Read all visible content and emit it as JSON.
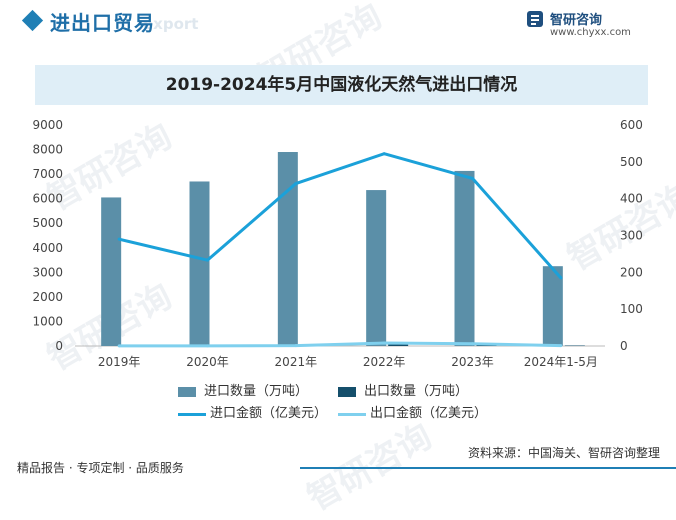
{
  "header": {
    "title": "进出口贸易",
    "subtitle": "export",
    "brand_name": "智研咨询",
    "brand_url": "www.chyxx.com"
  },
  "watermark": "智研咨询",
  "chart_title": "2019-2024年5月中国液化天然气进出口情况",
  "source": "资料来源：中国海关、智研咨询整理",
  "footer": "精品报告 · 专项定制 · 品质服务",
  "colors": {
    "import_qty": "#5b8fa8",
    "export_qty": "#154f6b",
    "import_value": "#1ba1d9",
    "export_value": "#7fd0ee",
    "title_bg": "#dfeef7",
    "accent": "#1f7fb5"
  },
  "chart_data": {
    "type": "bar",
    "title": "2019-2024年5月中国液化天然气进出口情况",
    "categories": [
      "2019年",
      "2020年",
      "2021年",
      "2022年",
      "2023年",
      "2024年1-5月"
    ],
    "left_axis": {
      "ylim": [
        0,
        9000
      ],
      "ticks": [
        "0",
        "1000",
        "2000",
        "3000",
        "4000",
        "5000",
        "6000",
        "7000",
        "8000",
        "9000"
      ]
    },
    "right_axis": {
      "ylim": [
        0,
        600
      ],
      "ticks": [
        "0",
        "100",
        "200",
        "300",
        "400",
        "500",
        "600"
      ]
    },
    "series": [
      {
        "name": "进口数量（万吨）",
        "type": "bar",
        "axis": "left",
        "values": [
          6050,
          6700,
          7900,
          6350,
          7130,
          3250
        ]
      },
      {
        "name": "出口数量（万吨）",
        "type": "bar",
        "axis": "left",
        "values": [
          5,
          10,
          20,
          130,
          100,
          20
        ]
      },
      {
        "name": "进口金额（亿美元）",
        "type": "line",
        "axis": "right",
        "values": [
          290,
          233,
          441,
          522,
          455,
          185
        ]
      },
      {
        "name": "出口金额（亿美元）",
        "type": "line",
        "axis": "right",
        "values": [
          0.2,
          0.5,
          1,
          8,
          6,
          1
        ]
      }
    ],
    "grid": false,
    "legend_position": "bottom"
  }
}
